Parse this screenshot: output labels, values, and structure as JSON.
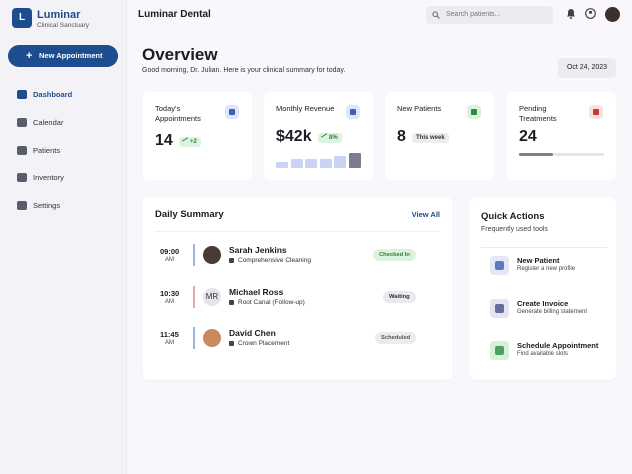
{
  "sidebar": {
    "brand_initial": "L",
    "brand": "Luminar",
    "tagline": "Clinical Sanctuary",
    "new_button": "New Appointment",
    "nav": [
      "Dashboard",
      "Calendar",
      "Patients",
      "Inventory",
      "Settings"
    ]
  },
  "topbar": {
    "title": "Luminar Dental",
    "search_placeholder": "Search patients..."
  },
  "header": {
    "title": "Overview",
    "subtitle": "Good morning, Dr. Julian. Here is your clinical summary for today.",
    "date": "Oct 24, 2023"
  },
  "stats": [
    {
      "label": "Today's Appointments",
      "value": "14",
      "badge": "+2"
    },
    {
      "label": "Monthly Revenue",
      "value": "$42k",
      "badge": "8%",
      "trend": [
        6,
        9,
        9,
        9,
        12,
        15
      ]
    },
    {
      "label": "New Patients",
      "value": "8",
      "badge": "This week"
    },
    {
      "label": "Pending Treatments",
      "value": "24",
      "progress": 40
    }
  ],
  "summary": {
    "title": "Daily Summary",
    "link": "View All",
    "appointments": [
      {
        "time": "09:00",
        "period": "AM",
        "name": "Sarah Jenkins",
        "service": "Comprehensive Cleaning",
        "status": "Checked In"
      },
      {
        "time": "10:30",
        "period": "AM",
        "initials": "MR",
        "name": "Michael Ross",
        "service": "Root Canal (Follow-up)",
        "status": "Waiting"
      },
      {
        "time": "11:45",
        "period": "AM",
        "name": "David Chen",
        "service": "Crown Placement",
        "status": "Scheduled"
      }
    ]
  },
  "quick_actions": {
    "title": "Quick Actions",
    "subtitle": "Frequently used tools",
    "items": [
      {
        "title": "New Patient",
        "description": "Register a new profile"
      },
      {
        "title": "Create Invoice",
        "description": "Generate billing statement"
      },
      {
        "title": "Schedule Appointment",
        "description": "Find available slots"
      }
    ]
  }
}
